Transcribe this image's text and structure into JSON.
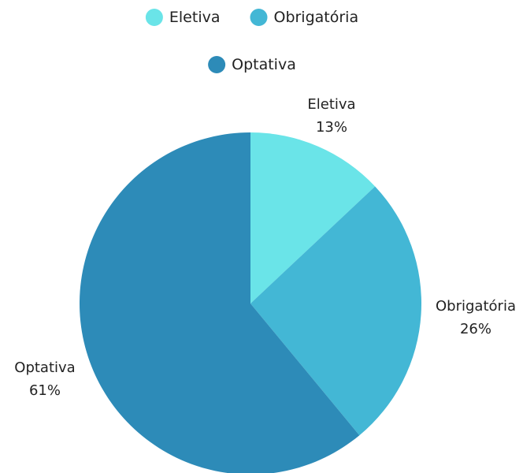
{
  "chart_data": {
    "type": "pie",
    "title": "",
    "legend_position": "top",
    "slices": [
      {
        "name": "Eletiva",
        "value": 13,
        "label": "13%",
        "color": "#6ae4e8"
      },
      {
        "name": "Obrigatória",
        "value": 26,
        "label": "26%",
        "color": "#43b7d5"
      },
      {
        "name": "Optativa",
        "value": 61,
        "label": "61%",
        "color": "#2d8bb8"
      }
    ]
  }
}
